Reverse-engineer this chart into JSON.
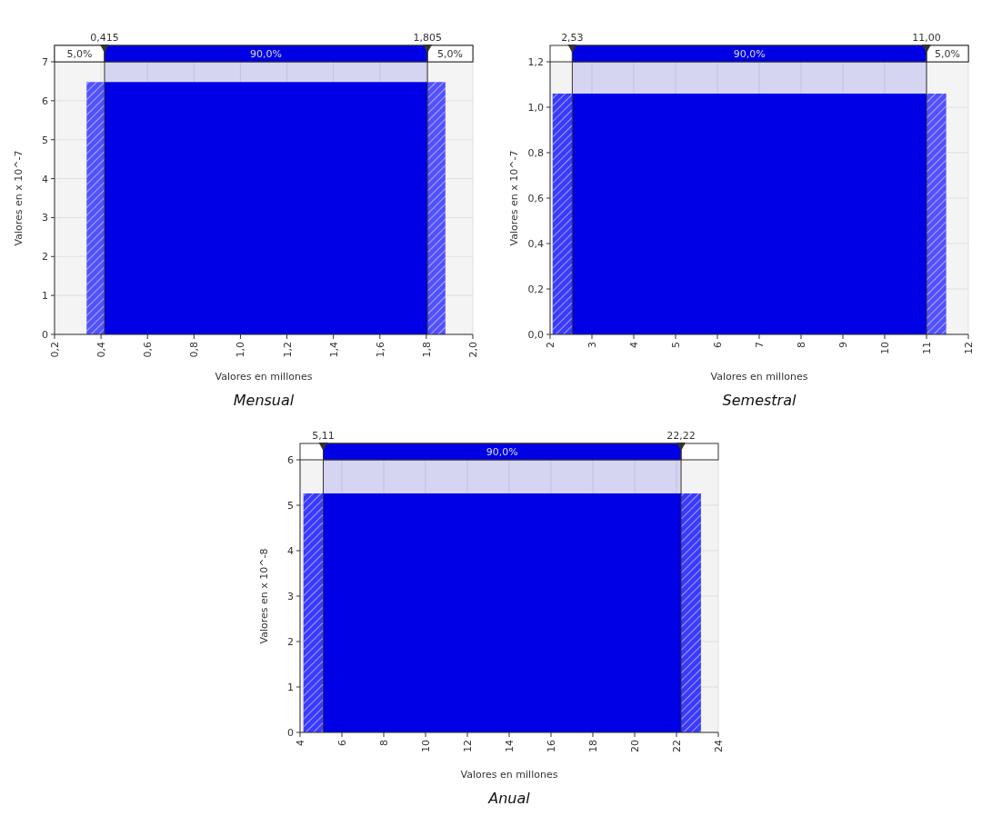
{
  "chart_data": [
    {
      "type": "histogram",
      "title": "Mensual",
      "xlabel": "Valores en millones",
      "ylabel": "Valores en x 10^-7",
      "bins": [
        0.338,
        0.415,
        1.805,
        1.882
      ],
      "values": [
        6.48,
        6.48,
        6.48
      ],
      "colors": [
        "#3a3aff",
        "#0000e6",
        "#3a3aff"
      ],
      "xlim": [
        0.2,
        2.0
      ],
      "xticks": [
        {
          "value": 0.2,
          "label": "0,2"
        },
        {
          "value": 0.4,
          "label": "0,4"
        },
        {
          "value": 0.6,
          "label": "0,6"
        },
        {
          "value": 0.8,
          "label": "0,8"
        },
        {
          "value": 1.0,
          "label": "1,0"
        },
        {
          "value": 1.2,
          "label": "1,2"
        },
        {
          "value": 1.4,
          "label": "1,4"
        },
        {
          "value": 1.6,
          "label": "1,6"
        },
        {
          "value": 1.8,
          "label": "1,8"
        },
        {
          "value": 2.0,
          "label": "2,0"
        }
      ],
      "ylim": [
        0,
        7
      ],
      "yticks": [
        0,
        1,
        2,
        3,
        4,
        5,
        6,
        7
      ],
      "grid": true,
      "ref_lines": [
        {
          "axis": "x",
          "value": 0.415,
          "label": "0,415",
          "color": "#333333"
        },
        {
          "axis": "x",
          "value": 1.805,
          "label": "1,805",
          "color": "#333333"
        }
      ],
      "bands": [
        {
          "axis": "x",
          "from": 0.2,
          "to": 0.415,
          "label": "5,0%",
          "color": "#ffffff"
        },
        {
          "axis": "x",
          "from": 0.415,
          "to": 1.805,
          "label": "90,0%",
          "color": "#0000e6"
        },
        {
          "axis": "x",
          "from": 1.805,
          "to": 2.0,
          "label": "5,0%",
          "color": "#ffffff"
        }
      ]
    },
    {
      "type": "histogram",
      "title": "Semestral",
      "xlabel": "Valores en millones",
      "ylabel": "Valores en x 10^-7",
      "bins": [
        2.06,
        2.53,
        11.0,
        11.47
      ],
      "values": [
        1.06,
        1.06,
        1.06
      ],
      "colors": [
        "#3a3aff",
        "#0000e6",
        "#3a3aff"
      ],
      "xlim": [
        2,
        12
      ],
      "xticks": [
        2,
        3,
        4,
        5,
        6,
        7,
        8,
        9,
        10,
        11,
        12
      ],
      "ylim": [
        0,
        1.2
      ],
      "yticks": [
        {
          "value": 0,
          "label": "0,0"
        },
        {
          "value": 0.2,
          "label": "0,2"
        },
        {
          "value": 0.4,
          "label": "0,4"
        },
        {
          "value": 0.6,
          "label": "0,6"
        },
        {
          "value": 0.8,
          "label": "0,8"
        },
        {
          "value": 1.0,
          "label": "1,0"
        },
        {
          "value": 1.2,
          "label": "1,2"
        }
      ],
      "grid": true,
      "ref_lines": [
        {
          "axis": "x",
          "value": 2.53,
          "label": "2,53",
          "color": "#333333"
        },
        {
          "axis": "x",
          "value": 11.0,
          "label": "11,00",
          "color": "#333333"
        }
      ],
      "bands": [
        {
          "axis": "x",
          "from": 2.53,
          "to": 11.0,
          "label": "90,0%",
          "color": "#0000e6"
        },
        {
          "axis": "x",
          "from": 11.0,
          "to": 12,
          "label": "5,0%",
          "color": "#ffffff"
        }
      ]
    },
    {
      "type": "histogram",
      "title": "Anual",
      "xlabel": "Valores en millones",
      "ylabel": "Valores en x 10^-8",
      "bins": [
        4.16,
        5.11,
        22.22,
        23.17
      ],
      "values": [
        5.26,
        5.26,
        5.26
      ],
      "colors": [
        "#3a3aff",
        "#0000e6",
        "#3a3aff"
      ],
      "xlim": [
        4,
        24
      ],
      "xticks": [
        4,
        6,
        8,
        10,
        12,
        14,
        16,
        18,
        20,
        22,
        24
      ],
      "ylim": [
        0,
        6
      ],
      "yticks": [
        0,
        1,
        2,
        3,
        4,
        5,
        6
      ],
      "grid": true,
      "ref_lines": [
        {
          "axis": "x",
          "value": 5.11,
          "label": "5,11",
          "color": "#333333"
        },
        {
          "axis": "x",
          "value": 22.22,
          "label": "22,22",
          "color": "#333333"
        }
      ],
      "bands": [
        {
          "axis": "x",
          "from": 5.11,
          "to": 22.22,
          "label": "90,0%",
          "color": "#0000e6"
        }
      ]
    }
  ]
}
